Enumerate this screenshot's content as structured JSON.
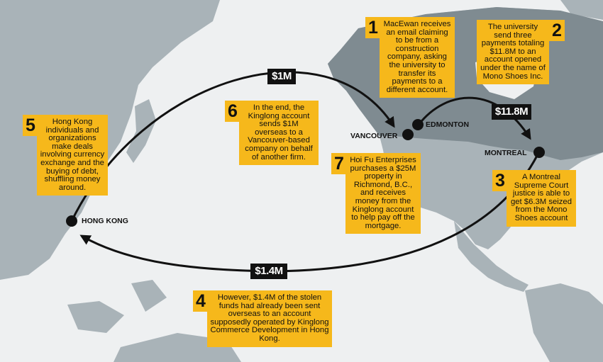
{
  "steps": [
    {
      "number": "1",
      "text": "MacEwan receives an email claiming to be from a construction company, asking the university to transfer its payments to a different account."
    },
    {
      "number": "2",
      "text": "The university send three payments totaling $11.8M to an account opened under the name of Mono Shoes Inc."
    },
    {
      "number": "3",
      "text": "A Montreal Supreme Court justice is able to get $6.3M seized from the Mono Shoes account"
    },
    {
      "number": "4",
      "text": "However, $1.4M of the stolen funds had already been sent overseas to an account supposedly operated by Kinglong Commerce Development in Hong Kong."
    },
    {
      "number": "5",
      "text": "Hong Kong individuals and organizations make deals involving currency exchange and the buying of debt, shuffling money around."
    },
    {
      "number": "6",
      "text": "In the end, the Kinglong account sends $1M overseas to a Vancouver-based company on behalf of another firm."
    },
    {
      "number": "7",
      "text": "Hoi Fu Enterprises purchases a $25M property in Richmond, B.C., and receives money from the Kinglong account to help pay off the mortgage."
    }
  ],
  "cities": {
    "vancouver": "VANCOUVER",
    "edmonton": "EDMONTON",
    "montreal": "MONTREAL",
    "hong_kong": "HONG KONG"
  },
  "amounts": {
    "edmonton_montreal": "$11.8M",
    "hongkong_vancouver": "$1M",
    "montreal_hongkong": "$1.4M"
  },
  "colors": {
    "ocean": "#eef0f1",
    "land": "#a9b3b8",
    "highlight_land": "#7f8b91",
    "callout": "#f6b81b",
    "route": "#111111"
  }
}
